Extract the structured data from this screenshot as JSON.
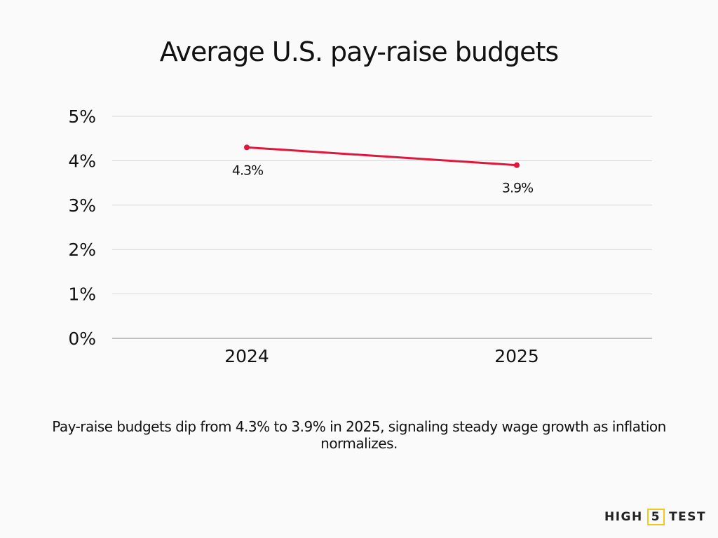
{
  "chart_data": {
    "type": "line",
    "title": "Average U.S. pay-raise budgets",
    "categories": [
      "2024",
      "2025"
    ],
    "values": [
      4.3,
      3.9
    ],
    "data_labels": [
      "4.3%",
      "3.9%"
    ],
    "yticks": [
      "0%",
      "1%",
      "2%",
      "3%",
      "4%",
      "5%"
    ],
    "ylim": [
      0,
      5
    ],
    "xlabel": "",
    "ylabel": "",
    "grid": true,
    "line_color": "#e0173d"
  },
  "caption": "Pay-raise budgets dip from 4.3% to 3.9% in 2025, signaling steady wage growth as inflation normalizes.",
  "logo": {
    "left": "HIGH",
    "mid": "5",
    "right": "TEST",
    "accent": "#f2c81e"
  }
}
